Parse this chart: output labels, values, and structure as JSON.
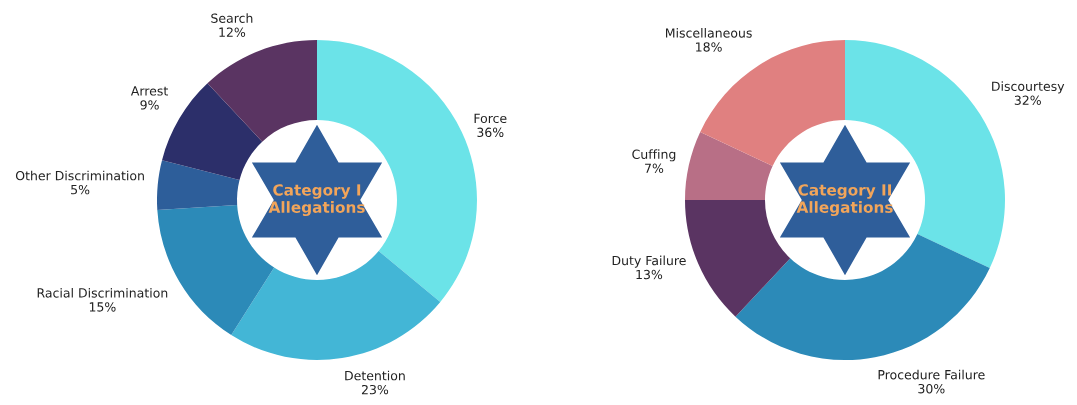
{
  "chart_data": [
    {
      "type": "donut",
      "title": "Category I Allegations",
      "categories": [
        "Force",
        "Detention",
        "Racial Discrimination",
        "Other Discrimination",
        "Arrest",
        "Search"
      ],
      "values": [
        36,
        23,
        15,
        5,
        9,
        12
      ],
      "value_labels": [
        "36%",
        "23%",
        "15%",
        "5%",
        "9%",
        "12%"
      ],
      "colors": [
        "#6be3e8",
        "#43b6d6",
        "#2c8ab8",
        "#2d5e9a",
        "#2c2f6a",
        "#5a3462"
      ]
    },
    {
      "type": "donut",
      "title": "Category II Allegations",
      "categories": [
        "Discourtesy",
        "Procedure Failure",
        "Duty Failure",
        "Cuffing",
        "Miscellaneous"
      ],
      "values": [
        32,
        30,
        13,
        7,
        18
      ],
      "value_labels": [
        "32%",
        "30%",
        "13%",
        "7%",
        "18%"
      ],
      "colors": [
        "#6be3e8",
        "#2c8ab8",
        "#5a3462",
        "#b86f86",
        "#e08080"
      ]
    }
  ]
}
